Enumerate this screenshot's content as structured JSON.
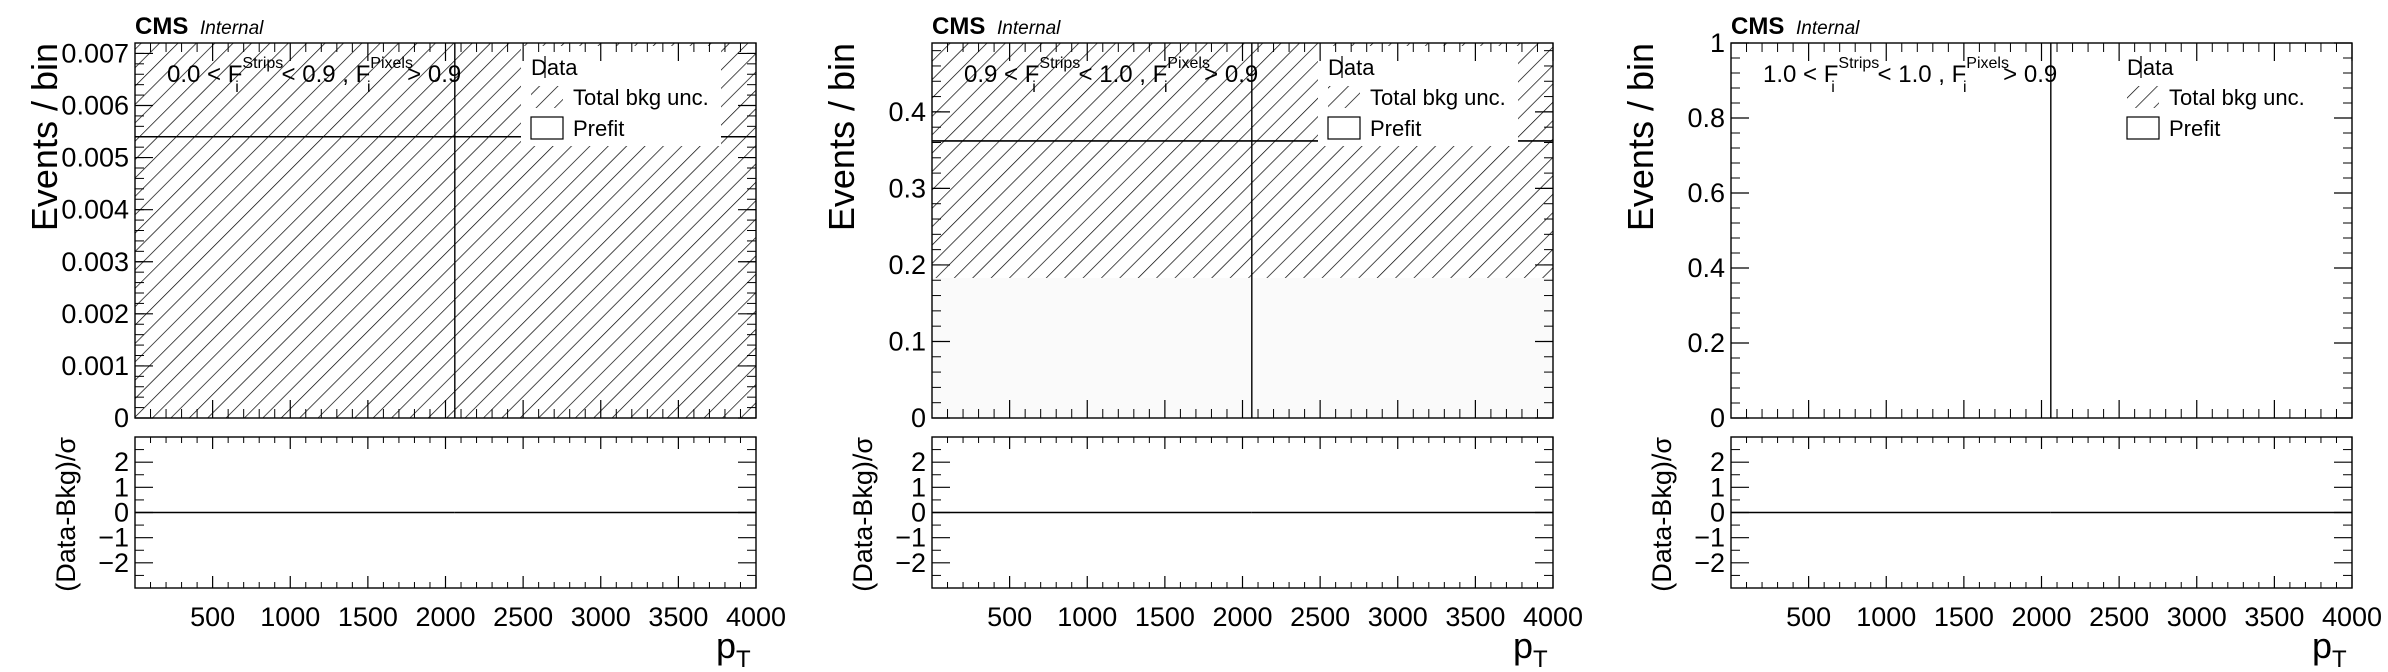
{
  "figure": {
    "experiment_label": "CMS",
    "status_label": "Internal",
    "x_axis_title": "p",
    "x_axis_title_sub": "T",
    "y_axis_title": "Events / bin",
    "ratio_axis_title": "(Data-Bkg)/σ",
    "legend": {
      "data": "Data",
      "bkg_unc": "Total bkg unc.",
      "prefit": "Prefit"
    },
    "colors": {
      "hatch": "#000000",
      "frame": "#000000",
      "band_fill": "#fafafa"
    }
  },
  "chart_data": [
    {
      "type": "bar",
      "panel": 1,
      "cut": {
        "lo": "0.0",
        "hi": "0.9",
        "pix": "0.9",
        "strips_sup": "Strips",
        "pixels_sup": "Pixels",
        "sub": "i",
        "f": "F"
      },
      "x_ticks": [
        "500",
        "1000",
        "1500",
        "2000",
        "2500",
        "3000",
        "3500",
        "4000"
      ],
      "xlim": [
        0,
        4000
      ],
      "ylim": [
        0,
        0.0072
      ],
      "y_ticks": [
        "0",
        "0.001",
        "0.002",
        "0.003",
        "0.004",
        "0.005",
        "0.006",
        "0.007"
      ],
      "y_tick_values": [
        0,
        0.001,
        0.002,
        0.003,
        0.004,
        0.005,
        0.006,
        0.007
      ],
      "bins": [
        {
          "x_lo": 0,
          "x_hi": 2060,
          "prefit": 0.0054
        },
        {
          "x_lo": 2060,
          "x_hi": 4000,
          "prefit": 0.0054
        }
      ],
      "bkg_unc_band": [
        0,
        0.0072
      ],
      "ratio": {
        "ylim": [
          -3,
          3
        ],
        "y_ticks": [
          "2",
          "1",
          "0",
          "−1",
          "−2"
        ],
        "y_tick_values": [
          2,
          1,
          0,
          -1,
          -2
        ],
        "values": [
          0,
          0
        ]
      }
    },
    {
      "type": "bar",
      "panel": 2,
      "cut": {
        "lo": "0.9",
        "hi": "1.0",
        "pix": "0.9",
        "strips_sup": "Strips",
        "pixels_sup": "Pixels",
        "sub": "i",
        "f": "F"
      },
      "x_ticks": [
        "500",
        "1000",
        "1500",
        "2000",
        "2500",
        "3000",
        "3500",
        "4000"
      ],
      "xlim": [
        0,
        4000
      ],
      "ylim": [
        0,
        0.49
      ],
      "y_ticks": [
        "0",
        "0.1",
        "0.2",
        "0.3",
        "0.4"
      ],
      "y_tick_values": [
        0,
        0.1,
        0.2,
        0.3,
        0.4
      ],
      "bins": [
        {
          "x_lo": 0,
          "x_hi": 2060,
          "prefit": 0.362
        },
        {
          "x_lo": 2060,
          "x_hi": 4000,
          "prefit": 0.362
        }
      ],
      "bkg_unc_band": [
        0.183,
        0.49
      ],
      "ratio": {
        "ylim": [
          -3,
          3
        ],
        "y_ticks": [
          "2",
          "1",
          "0",
          "−1",
          "−2"
        ],
        "y_tick_values": [
          2,
          1,
          0,
          -1,
          -2
        ],
        "values": [
          0,
          0
        ]
      }
    },
    {
      "type": "bar",
      "panel": 3,
      "cut": {
        "lo": "1.0",
        "hi": "1.0",
        "pix": "0.9",
        "strips_sup": "Strips",
        "pixels_sup": "Pixels",
        "sub": "i",
        "f": "F"
      },
      "x_ticks": [
        "500",
        "1000",
        "1500",
        "2000",
        "2500",
        "3000",
        "3500",
        "4000"
      ],
      "xlim": [
        0,
        4000
      ],
      "ylim": [
        0,
        1
      ],
      "y_ticks": [
        "0",
        "0.2",
        "0.4",
        "0.6",
        "0.8",
        "1"
      ],
      "y_tick_values": [
        0,
        0.2,
        0.4,
        0.6,
        0.8,
        1
      ],
      "bins": [
        {
          "x_lo": 0,
          "x_hi": 2060,
          "prefit": 0
        },
        {
          "x_lo": 2060,
          "x_hi": 4000,
          "prefit": 0
        }
      ],
      "bkg_unc_band": null,
      "ratio": {
        "ylim": [
          -3,
          3
        ],
        "y_ticks": [
          "2",
          "1",
          "0",
          "−1",
          "−2"
        ],
        "y_tick_values": [
          2,
          1,
          0,
          -1,
          -2
        ],
        "values": [
          0,
          0
        ]
      }
    }
  ]
}
